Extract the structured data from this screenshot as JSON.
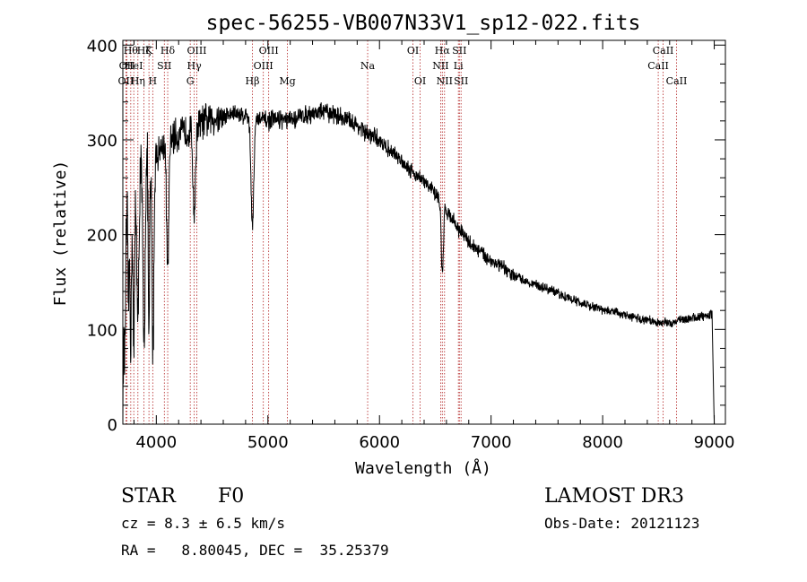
{
  "chart_data": {
    "type": "line",
    "title": "spec-56255-VB007N33V1_sp12-022.fits",
    "xlabel": "Wavelength (Å)",
    "ylabel": "Flux (relative)",
    "xlim": [
      3700,
      9100
    ],
    "ylim": [
      0,
      405
    ],
    "xticks": [
      4000,
      5000,
      6000,
      7000,
      8000,
      9000
    ],
    "xtick_labels": [
      "4000",
      "5000",
      "6000",
      "7000",
      "8000",
      "9000"
    ],
    "yticks": [
      0,
      100,
      200,
      300,
      400
    ],
    "ytick_labels": [
      "0",
      "100",
      "200",
      "300",
      "400"
    ],
    "grid": false,
    "continuum": [
      [
        3700,
        40
      ],
      [
        3720,
        260
      ],
      [
        3760,
        270
      ],
      [
        3800,
        250
      ],
      [
        3850,
        270
      ],
      [
        3900,
        280
      ],
      [
        3950,
        270
      ],
      [
        4000,
        285
      ],
      [
        4100,
        300
      ],
      [
        4200,
        305
      ],
      [
        4300,
        310
      ],
      [
        4400,
        318
      ],
      [
        4500,
        322
      ],
      [
        4600,
        325
      ],
      [
        4700,
        328
      ],
      [
        4800,
        326
      ],
      [
        4900,
        322
      ],
      [
        5000,
        320
      ],
      [
        5100,
        322
      ],
      [
        5200,
        320
      ],
      [
        5300,
        325
      ],
      [
        5400,
        328
      ],
      [
        5500,
        330
      ],
      [
        5600,
        327
      ],
      [
        5700,
        322
      ],
      [
        5800,
        315
      ],
      [
        5900,
        305
      ],
      [
        6000,
        300
      ],
      [
        6100,
        288
      ],
      [
        6200,
        278
      ],
      [
        6300,
        266
      ],
      [
        6400,
        256
      ],
      [
        6500,
        244
      ],
      [
        6600,
        226
      ],
      [
        6700,
        208
      ],
      [
        6800,
        192
      ],
      [
        6900,
        182
      ],
      [
        7000,
        173
      ],
      [
        7100,
        165
      ],
      [
        7200,
        157
      ],
      [
        7300,
        152
      ],
      [
        7400,
        147
      ],
      [
        7500,
        143
      ],
      [
        7600,
        138
      ],
      [
        7700,
        133
      ],
      [
        7800,
        128
      ],
      [
        7900,
        124
      ],
      [
        8000,
        121
      ],
      [
        8100,
        118
      ],
      [
        8200,
        115
      ],
      [
        8300,
        112
      ],
      [
        8400,
        110
      ],
      [
        8500,
        107
      ],
      [
        8600,
        107
      ],
      [
        8700,
        110
      ],
      [
        8800,
        112
      ],
      [
        8900,
        114
      ],
      [
        8980,
        116
      ],
      [
        9000,
        0
      ]
    ],
    "absorption_features": [
      {
        "x": 3720,
        "depth": 160,
        "width": 12
      },
      {
        "x": 3750,
        "depth": 140,
        "width": 10
      },
      {
        "x": 3771,
        "depth": 170,
        "width": 10
      },
      {
        "x": 3798,
        "depth": 180,
        "width": 10
      },
      {
        "x": 3835,
        "depth": 170,
        "width": 12
      },
      {
        "x": 3889,
        "depth": 190,
        "width": 14
      },
      {
        "x": 3934,
        "depth": 190,
        "width": 8
      },
      {
        "x": 3970,
        "depth": 190,
        "width": 12
      },
      {
        "x": 4102,
        "depth": 140,
        "width": 14
      },
      {
        "x": 4340,
        "depth": 90,
        "width": 16
      },
      {
        "x": 4861,
        "depth": 110,
        "width": 18
      },
      {
        "x": 6563,
        "depth": 75,
        "width": 14
      }
    ],
    "lines": [
      {
        "x": 3727,
        "row": 0,
        "label": "OII"
      },
      {
        "x": 3736,
        "row": 1,
        "label": "OII"
      },
      {
        "x": 3771,
        "row": 2,
        "label": "Hθ"
      },
      {
        "x": 3798,
        "row": 1,
        "label": "HeI"
      },
      {
        "x": 3835,
        "row": 0,
        "label": "Hη"
      },
      {
        "x": 3889,
        "row": 2,
        "label": "Hζ"
      },
      {
        "x": 3934,
        "row": 2,
        "label": "K"
      },
      {
        "x": 3968,
        "row": 0,
        "label": "H"
      },
      {
        "x": 4072,
        "row": 1,
        "label": "SII"
      },
      {
        "x": 4102,
        "row": 2,
        "label": "Hδ"
      },
      {
        "x": 4304,
        "row": 0,
        "label": "G"
      },
      {
        "x": 4340,
        "row": 1,
        "label": "Hγ"
      },
      {
        "x": 4363,
        "row": 2,
        "label": "OIII"
      },
      {
        "x": 4861,
        "row": 0,
        "label": "Hβ"
      },
      {
        "x": 4959,
        "row": 1,
        "label": "OIII"
      },
      {
        "x": 5007,
        "row": 2,
        "label": "OIII"
      },
      {
        "x": 5175,
        "row": 0,
        "label": "Mg"
      },
      {
        "x": 5894,
        "row": 1,
        "label": "Na"
      },
      {
        "x": 6300,
        "row": 2,
        "label": "OI"
      },
      {
        "x": 6364,
        "row": 0,
        "label": "OI"
      },
      {
        "x": 6548,
        "row": 1,
        "label": "NII"
      },
      {
        "x": 6563,
        "row": 2,
        "label": "Hα"
      },
      {
        "x": 6583,
        "row": 0,
        "label": "NII"
      },
      {
        "x": 6707,
        "row": 1,
        "label": "Li"
      },
      {
        "x": 6716,
        "row": 2,
        "label": "SII"
      },
      {
        "x": 6731,
        "row": 0,
        "label": "SII"
      },
      {
        "x": 8498,
        "row": 1,
        "label": "CaII"
      },
      {
        "x": 8542,
        "row": 2,
        "label": "CaII"
      },
      {
        "x": 8662,
        "row": 0,
        "label": "CaII"
      }
    ]
  },
  "info": {
    "class": "STAR",
    "subclass": "F0",
    "survey": "LAMOST DR3",
    "cz": "cz = 8.3 ± 6.5 km/s",
    "obs_date": "Obs-Date: 20121123",
    "radec": "RA =   8.80045, DEC =  35.25379"
  },
  "colors": {
    "spectrum": "#000000",
    "line_markers": "#b22222",
    "axes": "#000000"
  }
}
